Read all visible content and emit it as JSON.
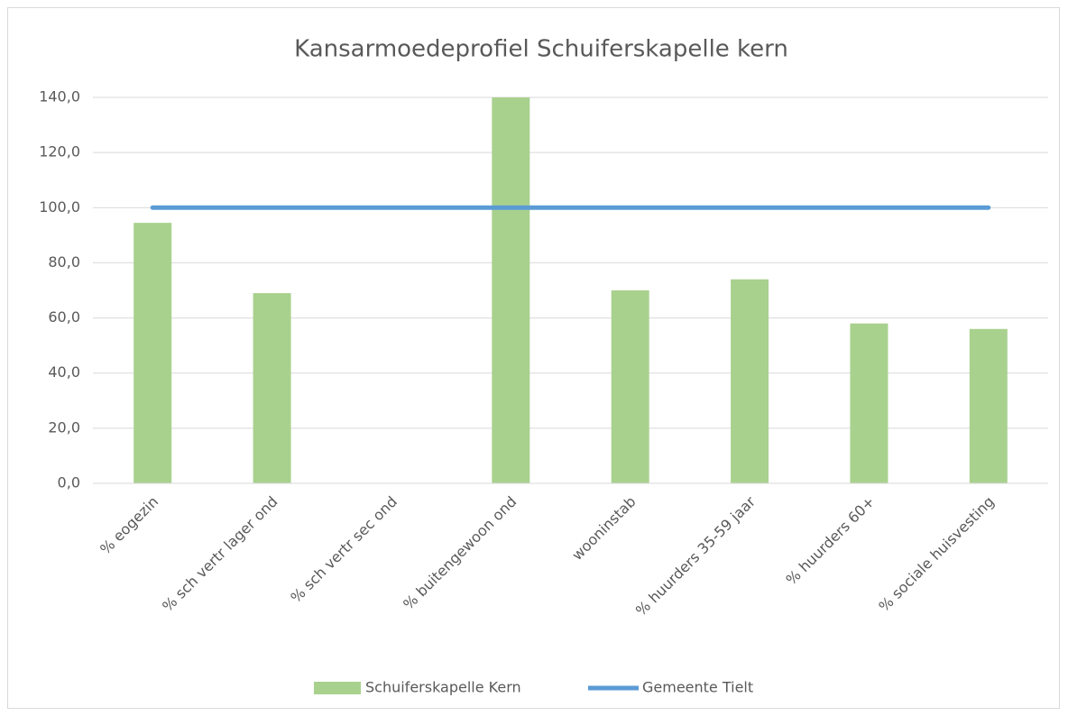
{
  "chart_data": {
    "type": "bar",
    "title": "Kansarmoedeprofiel Schuiferskapelle kern",
    "categories": [
      "% eogezin",
      "% sch vertr lager ond",
      "% sch vertr sec ond",
      "% buitengewoon ond",
      "wooninstab",
      "% huurders 35-59 jaar",
      "% huurders 60+",
      "% sociale huisvesting"
    ],
    "series": [
      {
        "name": "Schuiferskapelle Kern",
        "type": "bar",
        "color": "#a9d18e",
        "values": [
          94.5,
          69,
          0,
          140,
          70,
          74,
          58,
          56
        ]
      },
      {
        "name": "Gemeente Tielt",
        "type": "line",
        "color": "#5b9bd5",
        "values": [
          100,
          100,
          100,
          100,
          100,
          100,
          100,
          100
        ]
      }
    ],
    "ylim": [
      0,
      140
    ],
    "yticks": [
      {
        "value": 0,
        "label": "0,0"
      },
      {
        "value": 20,
        "label": "20,0"
      },
      {
        "value": 40,
        "label": "40,0"
      },
      {
        "value": 60,
        "label": "60,0"
      },
      {
        "value": 80,
        "label": "80,0"
      },
      {
        "value": 100,
        "label": "100,0"
      },
      {
        "value": 120,
        "label": "120,0"
      },
      {
        "value": 140,
        "label": "140,0"
      }
    ],
    "grid": true,
    "legend": "bottom"
  }
}
